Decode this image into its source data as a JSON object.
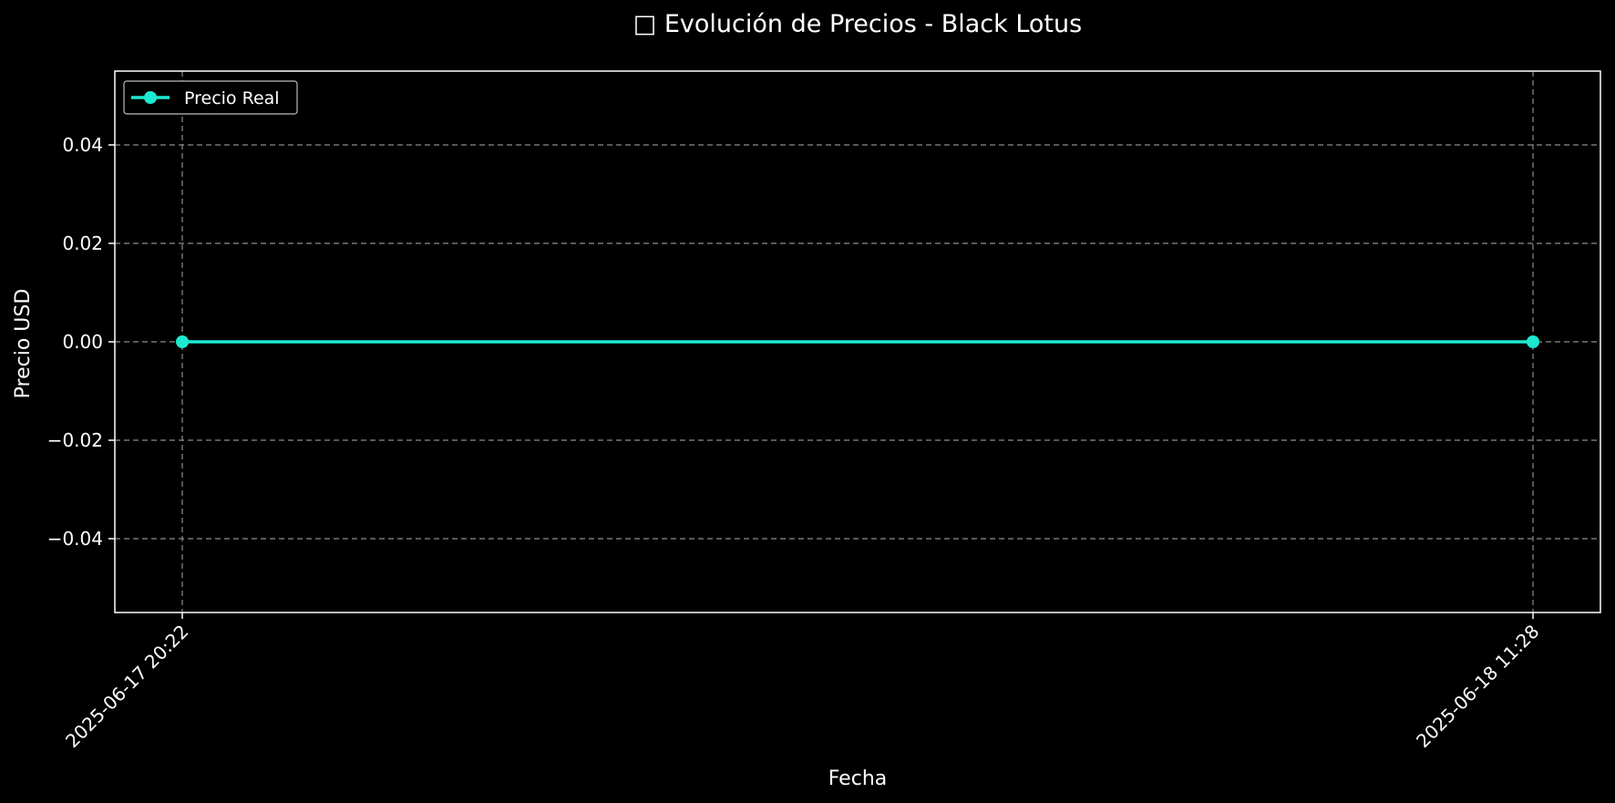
{
  "chart_data": {
    "type": "line",
    "title": "□ Evolución de Precios - Black Lotus",
    "xlabel": "Fecha",
    "ylabel": "Precio USD",
    "x": [
      "2025-06-17 20:22",
      "2025-06-18 11:28"
    ],
    "series": [
      {
        "name": "Precio Real",
        "values": [
          0.0,
          0.0
        ],
        "color": "#1de9d0"
      }
    ],
    "ylim": [
      -0.055,
      0.055
    ],
    "yticks": [
      0.04,
      0.02,
      0.0,
      -0.02,
      -0.04
    ],
    "ytick_labels": [
      "0.04",
      "0.02",
      "0.00",
      "−0.02",
      "−0.04"
    ],
    "xtick_labels": [
      "2025-06-17 20:22",
      "2025-06-18 11:28"
    ],
    "grid": true,
    "legend_position": "top-left",
    "background": "#000000",
    "foreground": "#ffffff",
    "grid_color": "#8c8c8c"
  }
}
